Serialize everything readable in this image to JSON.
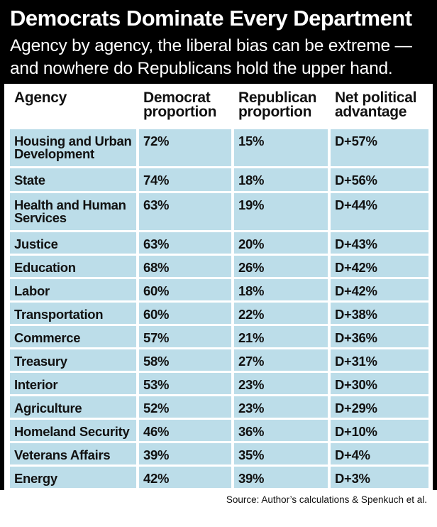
{
  "header": {
    "title": "Democrats Dominate Every Department",
    "subtitle": "Agency by agency, the liberal bias can be extreme — and nowhere do Republicans hold the upper hand."
  },
  "footer": {
    "source": "Source: Author’s calculations & Spenkuch et al."
  },
  "colors": {
    "header_bg": "#000000",
    "cell_bg": "#bcdde9",
    "text": "#111111"
  },
  "chart_data": {
    "type": "table",
    "columns": [
      "Agency",
      "Democrat proportion",
      "Republican proportion",
      "Net political advantage"
    ],
    "rows": [
      [
        "Housing and Urban Development",
        "72%",
        "15%",
        "D+57%"
      ],
      [
        "State",
        "74%",
        "18%",
        "D+56%"
      ],
      [
        "Health and Human Services",
        "63%",
        "19%",
        "D+44%"
      ],
      [
        "Justice",
        "63%",
        "20%",
        "D+43%"
      ],
      [
        "Education",
        "68%",
        "26%",
        "D+42%"
      ],
      [
        "Labor",
        "60%",
        "18%",
        "D+42%"
      ],
      [
        "Transportation",
        "60%",
        "22%",
        "D+38%"
      ],
      [
        "Commerce",
        "57%",
        "21%",
        "D+36%"
      ],
      [
        "Treasury",
        "58%",
        "27%",
        "D+31%"
      ],
      [
        "Interior",
        "53%",
        "23%",
        "D+30%"
      ],
      [
        "Agriculture",
        "52%",
        "23%",
        "D+29%"
      ],
      [
        "Homeland Security",
        "46%",
        "36%",
        "D+10%"
      ],
      [
        "Veterans Affairs",
        "39%",
        "35%",
        "D+4%"
      ],
      [
        "Energy",
        "42%",
        "39%",
        "D+3%"
      ]
    ]
  }
}
